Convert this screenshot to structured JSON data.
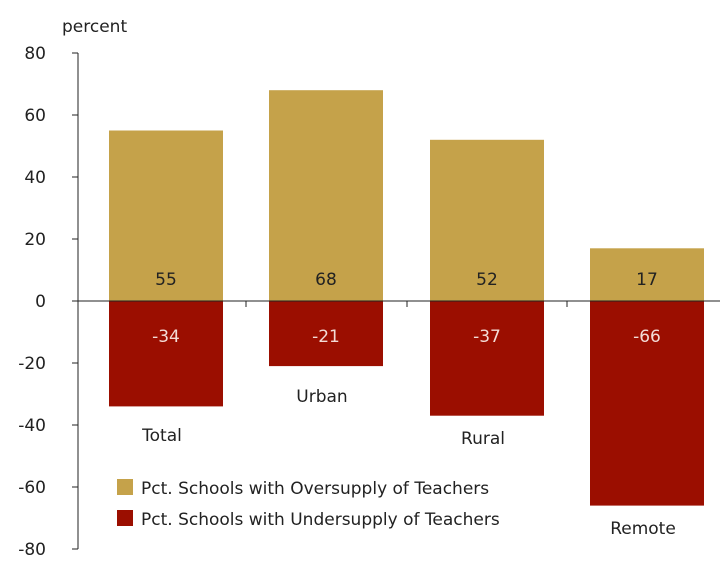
{
  "chart_data": {
    "type": "bar",
    "ylabel": "percent",
    "ylim": [
      -80,
      80
    ],
    "yticks": [
      80,
      60,
      40,
      20,
      0,
      -20,
      -40,
      -60,
      -80
    ],
    "categories": [
      "Total",
      "Urban",
      "Rural",
      "Remote"
    ],
    "series": [
      {
        "name": "Pct. Schools with Oversupply of Teachers",
        "values": [
          55,
          68,
          52,
          17
        ],
        "labels": [
          "55",
          "68",
          "52",
          "17"
        ],
        "color": "#c5a24a",
        "label_color": "#222222"
      },
      {
        "name": "Pct. Schools with Undersupply of Teachers",
        "values": [
          -34,
          -21,
          -37,
          -66
        ],
        "labels": [
          "-34",
          "-21",
          "-37",
          "-66"
        ],
        "color": "#9b0e00",
        "label_color": "#f3dcd6"
      }
    ],
    "grid": false,
    "legend_position": "bottom-left"
  }
}
